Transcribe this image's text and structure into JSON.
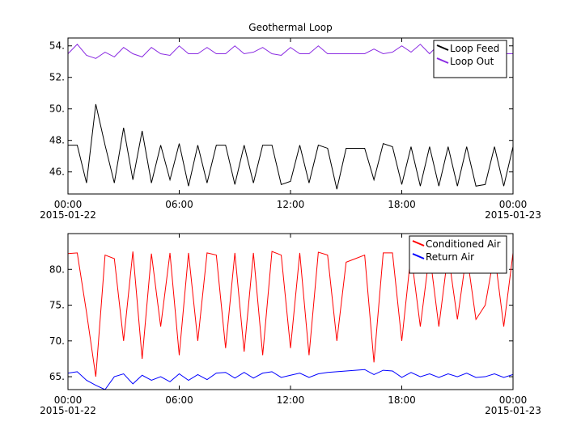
{
  "chart_data": [
    {
      "type": "line",
      "title": "Geothermal Loop",
      "x": [
        "2015-01-22T00:00",
        "2015-01-22T00:30",
        "2015-01-22T01:00",
        "2015-01-22T01:30",
        "2015-01-22T02:00",
        "2015-01-22T02:30",
        "2015-01-22T03:00",
        "2015-01-22T03:30",
        "2015-01-22T04:00",
        "2015-01-22T04:30",
        "2015-01-22T05:00",
        "2015-01-22T05:30",
        "2015-01-22T06:00",
        "2015-01-22T06:30",
        "2015-01-22T07:00",
        "2015-01-22T07:30",
        "2015-01-22T08:00",
        "2015-01-22T08:30",
        "2015-01-22T09:00",
        "2015-01-22T09:30",
        "2015-01-22T10:00",
        "2015-01-22T10:30",
        "2015-01-22T11:00",
        "2015-01-22T11:30",
        "2015-01-22T12:00",
        "2015-01-22T12:30",
        "2015-01-22T13:00",
        "2015-01-22T13:30",
        "2015-01-22T14:00",
        "2015-01-22T14:30",
        "2015-01-22T15:00",
        "2015-01-22T15:30",
        "2015-01-22T16:00",
        "2015-01-22T16:30",
        "2015-01-22T17:00",
        "2015-01-22T17:30",
        "2015-01-22T18:00",
        "2015-01-22T18:30",
        "2015-01-22T19:00",
        "2015-01-22T19:30",
        "2015-01-22T20:00",
        "2015-01-22T20:30",
        "2015-01-22T21:00",
        "2015-01-22T21:30",
        "2015-01-22T22:00",
        "2015-01-22T22:30",
        "2015-01-22T23:00",
        "2015-01-22T23:30",
        "2015-01-23T00:00"
      ],
      "series": [
        {
          "name": "Loop Feed",
          "color": "#000000",
          "values": [
            47.7,
            47.7,
            45.3,
            50.3,
            47.7,
            45.3,
            48.8,
            45.5,
            48.6,
            45.3,
            47.7,
            45.5,
            47.8,
            45.1,
            47.7,
            45.3,
            47.7,
            47.7,
            45.2,
            47.7,
            45.3,
            47.7,
            47.7,
            45.2,
            45.4,
            47.7,
            45.3,
            47.7,
            47.5,
            44.9,
            47.5,
            47.5,
            47.5,
            45.5,
            47.8,
            47.6,
            45.2,
            47.6,
            45.1,
            47.6,
            45.1,
            47.6,
            45.1,
            47.6,
            45.1,
            45.2,
            47.6,
            45.1,
            47.6
          ]
        },
        {
          "name": "Loop Out",
          "color": "#8a2be2",
          "values": [
            53.5,
            54.1,
            53.4,
            53.2,
            53.6,
            53.3,
            53.9,
            53.5,
            53.3,
            53.9,
            53.5,
            53.4,
            54.0,
            53.5,
            53.5,
            53.9,
            53.5,
            53.5,
            54.0,
            53.5,
            53.6,
            53.9,
            53.5,
            53.4,
            53.9,
            53.5,
            53.5,
            54.0,
            53.5,
            53.5,
            53.5,
            53.5,
            53.5,
            53.8,
            53.5,
            53.6,
            54.0,
            53.6,
            54.1,
            53.5,
            54.1,
            53.6,
            54.0,
            53.5,
            54.1,
            53.6,
            54.0,
            53.5,
            53.5
          ]
        }
      ],
      "xlim": [
        "2015-01-22T00:00",
        "2015-01-23T00:00"
      ],
      "xticks": [
        {
          "value": "2015-01-22T00:00",
          "label": "00:00\n2015-01-22"
        },
        {
          "value": "2015-01-22T06:00",
          "label": "06:00"
        },
        {
          "value": "2015-01-22T12:00",
          "label": "12:00"
        },
        {
          "value": "2015-01-22T18:00",
          "label": "18:00"
        },
        {
          "value": "2015-01-23T00:00",
          "label": "00:00\n2015-01-23"
        }
      ],
      "ylim": [
        44.6,
        54.5
      ],
      "yticks": [
        {
          "value": 46,
          "label": "46."
        },
        {
          "value": 48,
          "label": "48."
        },
        {
          "value": 50,
          "label": "50."
        },
        {
          "value": 52,
          "label": "52."
        },
        {
          "value": 54,
          "label": "54."
        }
      ],
      "legend": "upper right"
    },
    {
      "type": "line",
      "x": [
        "2015-01-22T00:00",
        "2015-01-22T00:30",
        "2015-01-22T01:00",
        "2015-01-22T01:30",
        "2015-01-22T02:00",
        "2015-01-22T02:30",
        "2015-01-22T03:00",
        "2015-01-22T03:30",
        "2015-01-22T04:00",
        "2015-01-22T04:30",
        "2015-01-22T05:00",
        "2015-01-22T05:30",
        "2015-01-22T06:00",
        "2015-01-22T06:30",
        "2015-01-22T07:00",
        "2015-01-22T07:30",
        "2015-01-22T08:00",
        "2015-01-22T08:30",
        "2015-01-22T09:00",
        "2015-01-22T09:30",
        "2015-01-22T10:00",
        "2015-01-22T10:30",
        "2015-01-22T11:00",
        "2015-01-22T11:30",
        "2015-01-22T12:00",
        "2015-01-22T12:30",
        "2015-01-22T13:00",
        "2015-01-22T13:30",
        "2015-01-22T14:00",
        "2015-01-22T14:30",
        "2015-01-22T15:00",
        "2015-01-22T15:30",
        "2015-01-22T16:00",
        "2015-01-22T16:30",
        "2015-01-22T17:00",
        "2015-01-22T17:30",
        "2015-01-22T18:00",
        "2015-01-22T18:30",
        "2015-01-22T19:00",
        "2015-01-22T19:30",
        "2015-01-22T20:00",
        "2015-01-22T20:30",
        "2015-01-22T21:00",
        "2015-01-22T21:30",
        "2015-01-22T22:00",
        "2015-01-22T22:30",
        "2015-01-22T23:00",
        "2015-01-22T23:30",
        "2015-01-23T00:00"
      ],
      "series": [
        {
          "name": "Conditioned Air",
          "color": "#ff0000",
          "values": [
            82.2,
            82.3,
            74.0,
            65.0,
            82.0,
            81.5,
            70.0,
            82.5,
            67.5,
            82.2,
            72.0,
            82.3,
            68.0,
            82.3,
            70.0,
            82.3,
            82.0,
            69.0,
            82.3,
            68.5,
            82.3,
            68.0,
            82.5,
            82.0,
            69.0,
            82.3,
            68.0,
            82.4,
            82.0,
            70.0,
            81.0,
            81.5,
            82.0,
            67.0,
            82.3,
            82.3,
            70.0,
            82.2,
            72.0,
            82.3,
            72.0,
            82.3,
            73.0,
            82.3,
            73.0,
            75.0,
            82.3,
            72.0,
            82.3
          ]
        },
        {
          "name": "Return Air",
          "color": "#0000ff",
          "values": [
            65.5,
            65.7,
            64.5,
            63.8,
            63.2,
            65.0,
            65.4,
            64.0,
            65.2,
            64.5,
            65.0,
            64.3,
            65.4,
            64.5,
            65.3,
            64.6,
            65.5,
            65.6,
            64.8,
            65.6,
            64.8,
            65.5,
            65.7,
            64.9,
            65.2,
            65.5,
            64.9,
            65.4,
            65.6,
            65.7,
            65.8,
            65.9,
            66.0,
            65.3,
            65.9,
            65.8,
            64.9,
            65.6,
            65.0,
            65.4,
            64.9,
            65.4,
            65.0,
            65.5,
            64.9,
            65.0,
            65.4,
            64.9,
            65.3
          ]
        }
      ],
      "xlim": [
        "2015-01-22T00:00",
        "2015-01-23T00:00"
      ],
      "xticks": [
        {
          "value": "2015-01-22T00:00",
          "label": "00:00\n2015-01-22"
        },
        {
          "value": "2015-01-22T06:00",
          "label": "06:00"
        },
        {
          "value": "2015-01-22T12:00",
          "label": "12:00"
        },
        {
          "value": "2015-01-22T18:00",
          "label": "18:00"
        },
        {
          "value": "2015-01-23T00:00",
          "label": "00:00\n2015-01-23"
        }
      ],
      "ylim": [
        63.2,
        85.0
      ],
      "yticks": [
        {
          "value": 65,
          "label": "65."
        },
        {
          "value": 70,
          "label": "70."
        },
        {
          "value": 75,
          "label": "75."
        },
        {
          "value": 80,
          "label": "80."
        }
      ],
      "legend": "upper right"
    }
  ]
}
